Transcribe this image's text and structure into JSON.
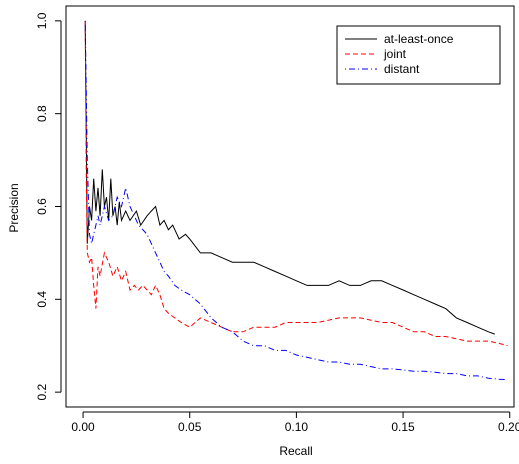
{
  "chart_data": {
    "type": "line",
    "title": "",
    "xlabel": "Recall",
    "ylabel": "Precision",
    "xlim": [
      0.0,
      0.2
    ],
    "ylim": [
      0.2,
      1.0
    ],
    "x_ticks": [
      0.0,
      0.05,
      0.1,
      0.15,
      0.2
    ],
    "x_tick_labels": [
      "0.00",
      "0.05",
      "0.10",
      "0.15",
      "0.20"
    ],
    "y_ticks": [
      0.2,
      0.4,
      0.6,
      0.8,
      1.0
    ],
    "y_tick_labels": [
      "0.2",
      "0.4",
      "0.6",
      "0.8",
      "1.0"
    ],
    "grid": false,
    "legend_position": "top-right",
    "series": [
      {
        "name": "at-least-once",
        "color": "#000000",
        "dash": "solid",
        "points": [
          [
            0.001,
            1.0
          ],
          [
            0.002,
            0.52
          ],
          [
            0.003,
            0.6
          ],
          [
            0.004,
            0.57
          ],
          [
            0.005,
            0.66
          ],
          [
            0.006,
            0.59
          ],
          [
            0.007,
            0.64
          ],
          [
            0.008,
            0.58
          ],
          [
            0.009,
            0.68
          ],
          [
            0.01,
            0.6
          ],
          [
            0.011,
            0.62
          ],
          [
            0.012,
            0.57
          ],
          [
            0.013,
            0.66
          ],
          [
            0.014,
            0.58
          ],
          [
            0.015,
            0.6
          ],
          [
            0.016,
            0.56
          ],
          [
            0.017,
            0.61
          ],
          [
            0.018,
            0.57
          ],
          [
            0.02,
            0.59
          ],
          [
            0.022,
            0.57
          ],
          [
            0.025,
            0.59
          ],
          [
            0.027,
            0.56
          ],
          [
            0.03,
            0.58
          ],
          [
            0.032,
            0.59
          ],
          [
            0.034,
            0.6
          ],
          [
            0.036,
            0.56
          ],
          [
            0.038,
            0.57
          ],
          [
            0.04,
            0.55
          ],
          [
            0.042,
            0.56
          ],
          [
            0.045,
            0.53
          ],
          [
            0.048,
            0.54
          ],
          [
            0.05,
            0.53
          ],
          [
            0.055,
            0.5
          ],
          [
            0.06,
            0.5
          ],
          [
            0.065,
            0.49
          ],
          [
            0.07,
            0.48
          ],
          [
            0.075,
            0.48
          ],
          [
            0.08,
            0.48
          ],
          [
            0.085,
            0.47
          ],
          [
            0.09,
            0.46
          ],
          [
            0.095,
            0.45
          ],
          [
            0.1,
            0.44
          ],
          [
            0.105,
            0.43
          ],
          [
            0.11,
            0.43
          ],
          [
            0.115,
            0.43
          ],
          [
            0.12,
            0.44
          ],
          [
            0.125,
            0.43
          ],
          [
            0.13,
            0.43
          ],
          [
            0.135,
            0.44
          ],
          [
            0.14,
            0.44
          ],
          [
            0.145,
            0.43
          ],
          [
            0.15,
            0.42
          ],
          [
            0.155,
            0.41
          ],
          [
            0.16,
            0.4
          ],
          [
            0.165,
            0.39
          ],
          [
            0.17,
            0.38
          ],
          [
            0.175,
            0.36
          ],
          [
            0.18,
            0.35
          ],
          [
            0.185,
            0.34
          ],
          [
            0.19,
            0.33
          ],
          [
            0.193,
            0.325
          ]
        ]
      },
      {
        "name": "joint",
        "color": "#ff0000",
        "dash": "dashed",
        "points": [
          [
            0.001,
            1.0
          ],
          [
            0.0015,
            0.66
          ],
          [
            0.002,
            0.5
          ],
          [
            0.003,
            0.48
          ],
          [
            0.004,
            0.49
          ],
          [
            0.005,
            0.43
          ],
          [
            0.006,
            0.38
          ],
          [
            0.007,
            0.47
          ],
          [
            0.008,
            0.45
          ],
          [
            0.01,
            0.5
          ],
          [
            0.012,
            0.48
          ],
          [
            0.014,
            0.45
          ],
          [
            0.016,
            0.47
          ],
          [
            0.018,
            0.44
          ],
          [
            0.02,
            0.46
          ],
          [
            0.022,
            0.42
          ],
          [
            0.024,
            0.43
          ],
          [
            0.026,
            0.42
          ],
          [
            0.028,
            0.43
          ],
          [
            0.03,
            0.42
          ],
          [
            0.032,
            0.41
          ],
          [
            0.034,
            0.43
          ],
          [
            0.036,
            0.41
          ],
          [
            0.038,
            0.38
          ],
          [
            0.04,
            0.37
          ],
          [
            0.043,
            0.36
          ],
          [
            0.046,
            0.35
          ],
          [
            0.05,
            0.34
          ],
          [
            0.055,
            0.36
          ],
          [
            0.06,
            0.35
          ],
          [
            0.065,
            0.34
          ],
          [
            0.07,
            0.33
          ],
          [
            0.075,
            0.33
          ],
          [
            0.08,
            0.34
          ],
          [
            0.085,
            0.34
          ],
          [
            0.09,
            0.34
          ],
          [
            0.095,
            0.35
          ],
          [
            0.1,
            0.35
          ],
          [
            0.105,
            0.35
          ],
          [
            0.11,
            0.35
          ],
          [
            0.115,
            0.355
          ],
          [
            0.12,
            0.36
          ],
          [
            0.125,
            0.36
          ],
          [
            0.13,
            0.36
          ],
          [
            0.135,
            0.355
          ],
          [
            0.14,
            0.35
          ],
          [
            0.145,
            0.35
          ],
          [
            0.15,
            0.34
          ],
          [
            0.155,
            0.33
          ],
          [
            0.16,
            0.33
          ],
          [
            0.165,
            0.32
          ],
          [
            0.17,
            0.32
          ],
          [
            0.175,
            0.315
          ],
          [
            0.18,
            0.31
          ],
          [
            0.185,
            0.31
          ],
          [
            0.19,
            0.31
          ],
          [
            0.195,
            0.305
          ],
          [
            0.199,
            0.3
          ]
        ]
      },
      {
        "name": "distant",
        "color": "#0000ff",
        "dash": "dotdash",
        "points": [
          [
            0.001,
            1.0
          ],
          [
            0.002,
            0.7
          ],
          [
            0.003,
            0.54
          ],
          [
            0.004,
            0.52
          ],
          [
            0.005,
            0.54
          ],
          [
            0.006,
            0.56
          ],
          [
            0.007,
            0.58
          ],
          [
            0.008,
            0.56
          ],
          [
            0.01,
            0.6
          ],
          [
            0.012,
            0.57
          ],
          [
            0.014,
            0.58
          ],
          [
            0.016,
            0.62
          ],
          [
            0.018,
            0.6
          ],
          [
            0.02,
            0.64
          ],
          [
            0.022,
            0.6
          ],
          [
            0.024,
            0.58
          ],
          [
            0.026,
            0.56
          ],
          [
            0.028,
            0.55
          ],
          [
            0.03,
            0.54
          ],
          [
            0.032,
            0.52
          ],
          [
            0.034,
            0.5
          ],
          [
            0.036,
            0.48
          ],
          [
            0.038,
            0.46
          ],
          [
            0.04,
            0.45
          ],
          [
            0.043,
            0.43
          ],
          [
            0.046,
            0.42
          ],
          [
            0.05,
            0.41
          ],
          [
            0.055,
            0.39
          ],
          [
            0.06,
            0.36
          ],
          [
            0.065,
            0.34
          ],
          [
            0.07,
            0.33
          ],
          [
            0.075,
            0.31
          ],
          [
            0.08,
            0.3
          ],
          [
            0.085,
            0.3
          ],
          [
            0.09,
            0.29
          ],
          [
            0.095,
            0.29
          ],
          [
            0.1,
            0.28
          ],
          [
            0.105,
            0.275
          ],
          [
            0.11,
            0.27
          ],
          [
            0.115,
            0.265
          ],
          [
            0.12,
            0.265
          ],
          [
            0.125,
            0.26
          ],
          [
            0.13,
            0.26
          ],
          [
            0.135,
            0.255
          ],
          [
            0.14,
            0.25
          ],
          [
            0.145,
            0.25
          ],
          [
            0.15,
            0.248
          ],
          [
            0.155,
            0.245
          ],
          [
            0.16,
            0.245
          ],
          [
            0.165,
            0.243
          ],
          [
            0.17,
            0.24
          ],
          [
            0.175,
            0.24
          ],
          [
            0.18,
            0.235
          ],
          [
            0.185,
            0.235
          ],
          [
            0.19,
            0.23
          ],
          [
            0.195,
            0.228
          ],
          [
            0.199,
            0.227
          ]
        ]
      }
    ]
  }
}
